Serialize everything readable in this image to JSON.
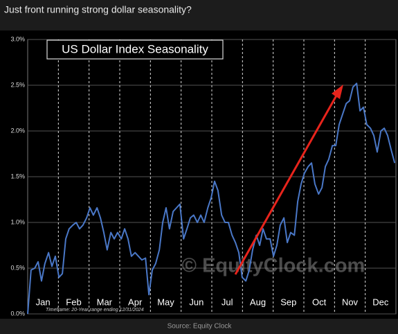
{
  "header": {
    "text": "Just front running strong dollar seasonality?"
  },
  "chart_data": {
    "type": "line",
    "title": "US Dollar Index Seasonality",
    "watermark": "© EquityClock.com",
    "footnote": "Timeframe: 20-Year range ending 12/31/2024",
    "x": [
      0,
      0.11,
      0.23,
      0.34,
      0.45,
      0.56,
      0.68,
      0.79,
      0.9,
      1.02,
      1.13,
      1.24,
      1.35,
      1.47,
      1.58,
      1.69,
      1.8,
      1.92,
      2.03,
      2.14,
      2.26,
      2.37,
      2.48,
      2.59,
      2.71,
      2.82,
      2.93,
      3.05,
      3.16,
      3.27,
      3.38,
      3.5,
      3.61,
      3.72,
      3.84,
      3.95,
      4.06,
      4.17,
      4.29,
      4.4,
      4.51,
      4.62,
      4.74,
      4.85,
      4.96,
      5.08,
      5.19,
      5.3,
      5.41,
      5.53,
      5.64,
      5.75,
      5.87,
      5.98,
      6.09,
      6.2,
      6.32,
      6.43,
      6.54,
      6.66,
      6.77,
      6.88,
      6.99,
      7.11,
      7.22,
      7.33,
      7.45,
      7.56,
      7.67,
      7.78,
      7.9,
      8.01,
      8.12,
      8.23,
      8.35,
      8.46,
      8.57,
      8.69,
      8.8,
      8.91,
      9.02,
      9.14,
      9.25,
      9.36,
      9.48,
      9.59,
      9.7,
      9.81,
      9.93,
      10.04,
      10.15,
      10.26,
      10.38,
      10.49,
      10.6,
      10.72,
      10.83,
      10.94,
      11.05,
      11.17,
      11.28,
      11.39,
      11.51,
      11.62,
      11.73,
      11.84,
      11.96
    ],
    "series": [
      {
        "color": "#4a78c8",
        "values": [
          0.0,
          0.48,
          0.5,
          0.57,
          0.36,
          0.55,
          0.67,
          0.52,
          0.63,
          0.4,
          0.44,
          0.82,
          0.93,
          0.97,
          1.0,
          0.93,
          0.97,
          1.05,
          1.16,
          1.08,
          1.16,
          1.05,
          0.89,
          0.7,
          0.89,
          0.82,
          0.89,
          0.82,
          0.93,
          0.82,
          0.63,
          0.67,
          0.63,
          0.59,
          0.61,
          0.21,
          0.48,
          0.55,
          0.7,
          1.0,
          1.16,
          0.93,
          1.12,
          1.16,
          1.2,
          0.82,
          0.93,
          1.05,
          1.08,
          1.0,
          1.08,
          1.0,
          1.16,
          1.27,
          1.45,
          1.35,
          1.08,
          1.0,
          1.0,
          0.86,
          0.78,
          0.67,
          0.4,
          0.36,
          0.48,
          0.7,
          0.86,
          0.75,
          0.93,
          0.82,
          0.82,
          0.63,
          0.75,
          0.97,
          1.05,
          0.78,
          0.89,
          0.86,
          1.23,
          1.42,
          1.54,
          1.61,
          1.65,
          1.42,
          1.31,
          1.38,
          1.61,
          1.69,
          1.84,
          1.84,
          2.07,
          2.18,
          2.3,
          2.33,
          2.48,
          2.52,
          2.22,
          2.26,
          2.07,
          2.03,
          1.95,
          1.77,
          2.0,
          2.03,
          1.95,
          1.8,
          1.65
        ]
      }
    ],
    "xlim": [
      0,
      12
    ],
    "xticks": [
      {
        "value": 0.5,
        "label": "Jan"
      },
      {
        "value": 1.5,
        "label": "Feb"
      },
      {
        "value": 2.5,
        "label": "Mar"
      },
      {
        "value": 3.5,
        "label": "Apr"
      },
      {
        "value": 4.5,
        "label": "May"
      },
      {
        "value": 5.5,
        "label": "Jun"
      },
      {
        "value": 6.5,
        "label": "Jul"
      },
      {
        "value": 7.5,
        "label": "Aug"
      },
      {
        "value": 8.5,
        "label": "Sep"
      },
      {
        "value": 9.5,
        "label": "Oct"
      },
      {
        "value": 10.5,
        "label": "Nov"
      },
      {
        "value": 11.5,
        "label": "Dec"
      }
    ],
    "ylim": [
      0,
      3
    ],
    "yticks": [
      {
        "value": 0,
        "label": "0.0%"
      },
      {
        "value": 0.5,
        "label": "0.5%"
      },
      {
        "value": 1,
        "label": "1.0%"
      },
      {
        "value": 1.5,
        "label": "1.5%"
      },
      {
        "value": 2,
        "label": "2.0%"
      },
      {
        "value": 2.5,
        "label": "2.5%"
      },
      {
        "value": 3,
        "label": "3.0%"
      }
    ],
    "grid": true
  },
  "caption": "Source: Equity Clock"
}
